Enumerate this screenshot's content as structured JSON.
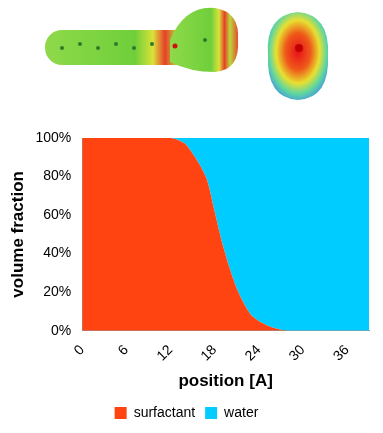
{
  "chart_data": {
    "type": "area",
    "stacked": true,
    "xlabel": "position [A]",
    "ylabel": "volume fraction",
    "x": [
      0,
      1,
      2,
      3,
      4,
      5,
      6,
      7,
      8,
      9,
      10,
      11,
      12,
      13,
      14,
      15,
      16,
      17,
      18,
      19,
      20,
      21,
      22,
      23,
      24,
      25,
      26,
      27,
      28,
      29,
      30,
      31,
      32,
      33,
      34,
      35,
      36,
      37,
      38,
      39
    ],
    "series": [
      {
        "name": "surfactant",
        "color": "#ff4411",
        "values": [
          100,
          100,
          100,
          100,
          100,
          100,
          100,
          100,
          100,
          100,
          100,
          100,
          100,
          99,
          97,
          92,
          86,
          78,
          62,
          46,
          33,
          22,
          14,
          8,
          5,
          3,
          1.5,
          0.5,
          0,
          0,
          0,
          0,
          0,
          0,
          0,
          0,
          0,
          0,
          0,
          0
        ]
      },
      {
        "name": "water",
        "color": "#00ccff",
        "values": [
          0,
          0,
          0,
          0,
          0,
          0,
          0,
          0,
          0,
          0,
          0,
          0,
          0,
          1,
          3,
          8,
          14,
          22,
          38,
          54,
          67,
          78,
          86,
          92,
          95,
          97,
          98.5,
          99.5,
          100,
          100,
          100,
          100,
          100,
          100,
          100,
          100,
          100,
          100,
          100,
          100
        ]
      }
    ],
    "xlim": [
      0,
      39
    ],
    "xticks": [
      0,
      6,
      12,
      18,
      24,
      30,
      36
    ],
    "ylim": [
      0,
      100
    ],
    "yticks": [
      {
        "value": 0,
        "label": "0%"
      },
      {
        "value": 20,
        "label": "20%"
      },
      {
        "value": 40,
        "label": "40%"
      },
      {
        "value": 60,
        "label": "60%"
      },
      {
        "value": 80,
        "label": "80%"
      },
      {
        "value": 100,
        "label": "100%"
      }
    ],
    "grid": false,
    "legend": "bottom"
  }
}
